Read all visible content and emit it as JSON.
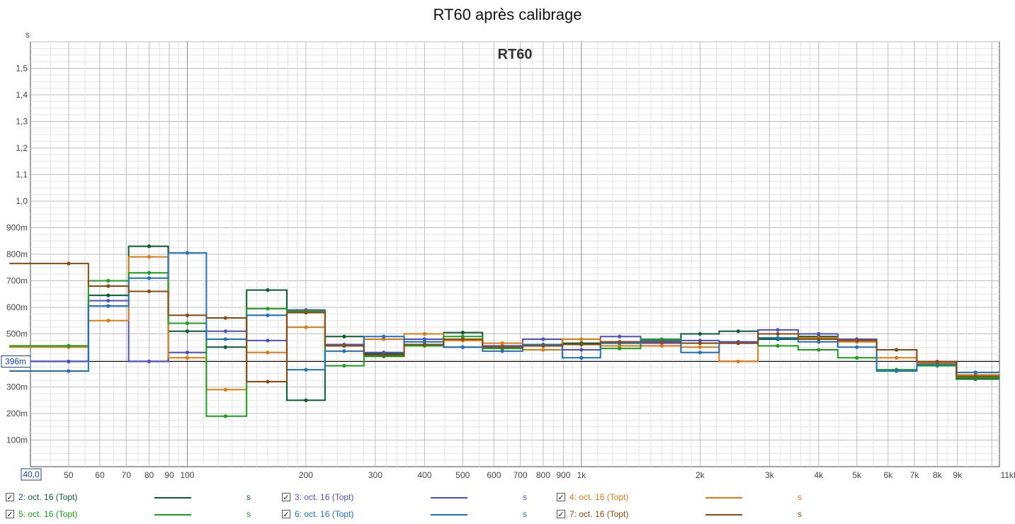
{
  "chart_data": {
    "type": "line",
    "title": "RT60 après calibrage",
    "inner_label": "RT60",
    "ylabel": "s",
    "xscale": "log",
    "xlim": [
      40,
      11500
    ],
    "ylim": [
      0,
      1.6
    ],
    "grid": true,
    "cursor_value": 0.396,
    "cursor_label": "396m",
    "x_origin_label": "40,0",
    "yticks": [
      {
        "v": 0.1,
        "label": "100m"
      },
      {
        "v": 0.2,
        "label": "200m"
      },
      {
        "v": 0.3,
        "label": "300m"
      },
      {
        "v": 0.5,
        "label": "500m"
      },
      {
        "v": 0.6,
        "label": "600m"
      },
      {
        "v": 0.7,
        "label": "700m"
      },
      {
        "v": 0.8,
        "label": "800m"
      },
      {
        "v": 0.9,
        "label": "900m"
      },
      {
        "v": 1.0,
        "label": "1,0"
      },
      {
        "v": 1.1,
        "label": "1,1"
      },
      {
        "v": 1.2,
        "label": "1,2"
      },
      {
        "v": 1.3,
        "label": "1,3"
      },
      {
        "v": 1.4,
        "label": "1,4"
      },
      {
        "v": 1.5,
        "label": "1,5"
      }
    ],
    "xticks": [
      {
        "v": 50,
        "label": "50"
      },
      {
        "v": 60,
        "label": "60"
      },
      {
        "v": 70,
        "label": "70"
      },
      {
        "v": 80,
        "label": "80"
      },
      {
        "v": 90,
        "label": "90"
      },
      {
        "v": 100,
        "label": "100"
      },
      {
        "v": 200,
        "label": "200"
      },
      {
        "v": 300,
        "label": "300"
      },
      {
        "v": 400,
        "label": "400"
      },
      {
        "v": 500,
        "label": "500"
      },
      {
        "v": 600,
        "label": "600"
      },
      {
        "v": 700,
        "label": "700"
      },
      {
        "v": 800,
        "label": "800"
      },
      {
        "v": 900,
        "label": "900"
      },
      {
        "v": 1000,
        "label": "1k"
      },
      {
        "v": 2000,
        "label": "2k"
      },
      {
        "v": 3000,
        "label": "3k"
      },
      {
        "v": 4000,
        "label": "4k"
      },
      {
        "v": 5000,
        "label": "5k"
      },
      {
        "v": 6000,
        "label": "6k"
      },
      {
        "v": 7000,
        "label": "7k"
      },
      {
        "v": 8000,
        "label": "8k"
      },
      {
        "v": 9000,
        "label": "9k"
      },
      {
        "v": 11000,
        "label": "11kHz"
      }
    ],
    "x": [
      50,
      63,
      80,
      100,
      125,
      160,
      200,
      250,
      315,
      400,
      500,
      630,
      800,
      1000,
      1250,
      1600,
      2000,
      2500,
      3150,
      4000,
      5000,
      6300,
      8000,
      10000
    ],
    "series": [
      {
        "name": "2: oct. 16 (Topt)",
        "color": "#0a5e32",
        "unit": "s",
        "values": [
          0.396,
          0.645,
          0.83,
          0.51,
          0.45,
          0.665,
          0.25,
          0.49,
          0.425,
          0.46,
          0.505,
          0.45,
          0.455,
          0.465,
          0.465,
          0.47,
          0.5,
          0.51,
          0.48,
          0.49,
          0.48,
          0.44,
          0.39,
          0.33
        ]
      },
      {
        "name": "3: oct. 16 (Topt)",
        "color": "#4f4fc4",
        "unit": "s",
        "values": [
          0.396,
          0.625,
          0.396,
          0.43,
          0.51,
          0.475,
          0.59,
          0.46,
          0.43,
          0.48,
          0.45,
          0.455,
          0.48,
          0.44,
          0.49,
          0.465,
          0.475,
          0.47,
          0.515,
          0.5,
          0.48,
          0.44,
          0.395,
          0.345
        ]
      },
      {
        "name": "4: oct. 16 (Topt)",
        "color": "#e07a10",
        "unit": "s",
        "values": [
          0.45,
          0.55,
          0.79,
          0.41,
          0.29,
          0.43,
          0.525,
          0.455,
          0.48,
          0.5,
          0.475,
          0.465,
          0.44,
          0.48,
          0.455,
          0.455,
          0.45,
          0.396,
          0.5,
          0.485,
          0.47,
          0.41,
          0.39,
          0.345
        ]
      },
      {
        "name": "5: oct. 16 (Topt)",
        "color": "#1aa01a",
        "unit": "s",
        "values": [
          0.455,
          0.7,
          0.73,
          0.54,
          0.19,
          0.595,
          0.585,
          0.38,
          0.415,
          0.455,
          0.49,
          0.445,
          0.455,
          0.46,
          0.445,
          0.48,
          0.465,
          0.465,
          0.455,
          0.44,
          0.41,
          0.365,
          0.38,
          0.335
        ]
      },
      {
        "name": "6: oct. 16 (Topt)",
        "color": "#1e70c0",
        "unit": "s",
        "values": [
          0.36,
          0.605,
          0.71,
          0.805,
          0.48,
          0.57,
          0.365,
          0.435,
          0.49,
          0.47,
          0.45,
          0.435,
          0.46,
          0.41,
          0.465,
          0.475,
          0.43,
          0.465,
          0.485,
          0.47,
          0.45,
          0.36,
          0.385,
          0.355
        ]
      },
      {
        "name": "7: oct. 16 (Topt)",
        "color": "#8a4b10",
        "unit": "s",
        "values": [
          0.765,
          0.68,
          0.66,
          0.57,
          0.56,
          0.32,
          0.58,
          0.455,
          0.42,
          0.46,
          0.48,
          0.45,
          0.455,
          0.46,
          0.47,
          0.47,
          0.465,
          0.465,
          0.5,
          0.48,
          0.475,
          0.44,
          0.395,
          0.34
        ]
      }
    ]
  }
}
